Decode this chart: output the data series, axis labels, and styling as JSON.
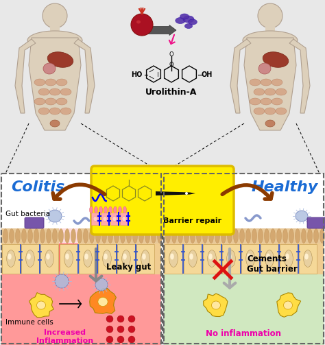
{
  "background_color": "#f2f2f2",
  "colitis_label": "Colitis",
  "healthy_label": "Healthy",
  "urolithin_label": "Urolithin-A",
  "barrier_repair_label": "Barrier repair",
  "leaky_gut_label": "Leaky gut",
  "cements_label": "Cements\nGut barrier",
  "gut_bacteria_label": "Gut bacteria",
  "immune_cells_label": "Immune cells",
  "increased_inflammation_label": "Increased\nInflammation",
  "no_inflammation_label": "No inflammation",
  "colitis_label_color": "#1a6bd4",
  "healthy_label_color": "#1a6bd4",
  "inflammation_color": "#ee00aa",
  "arrow_color": "#8B3A00",
  "yellow_box_color": "#ffee00",
  "tight_junction_color": "#3355cc"
}
